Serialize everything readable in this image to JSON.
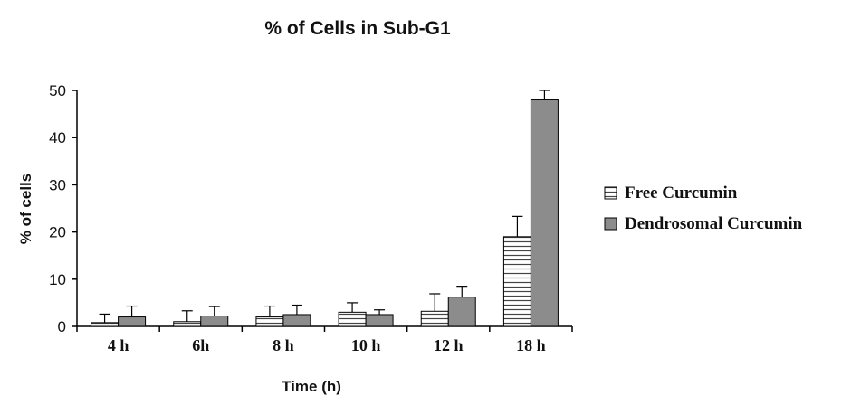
{
  "chart_data": {
    "type": "bar",
    "title": "% of Cells in Sub-G1",
    "xlabel": "Time (h)",
    "ylabel": "% of cells",
    "categories": [
      "4 h",
      "6h",
      "8 h",
      "10 h",
      "12 h",
      "18 h"
    ],
    "ylim": [
      0,
      50
    ],
    "yticks": [
      0,
      10,
      20,
      30,
      40,
      50
    ],
    "grid": false,
    "legend_position": "right",
    "series": [
      {
        "name": "Free Curcumin",
        "values": [
          0.8,
          1.0,
          2.0,
          3.0,
          3.2,
          19.0
        ],
        "errors": [
          1.8,
          2.3,
          2.3,
          2.0,
          3.7,
          4.3
        ],
        "fill": "horizontal-stripes",
        "color": "#ffffff"
      },
      {
        "name": "Dendrosomal Curcumin",
        "values": [
          2.0,
          2.2,
          2.5,
          2.5,
          6.2,
          48.0
        ],
        "errors": [
          2.3,
          2.0,
          2.0,
          1.0,
          2.3,
          2.0
        ],
        "fill": "solid",
        "color": "#8c8c8c"
      }
    ]
  }
}
